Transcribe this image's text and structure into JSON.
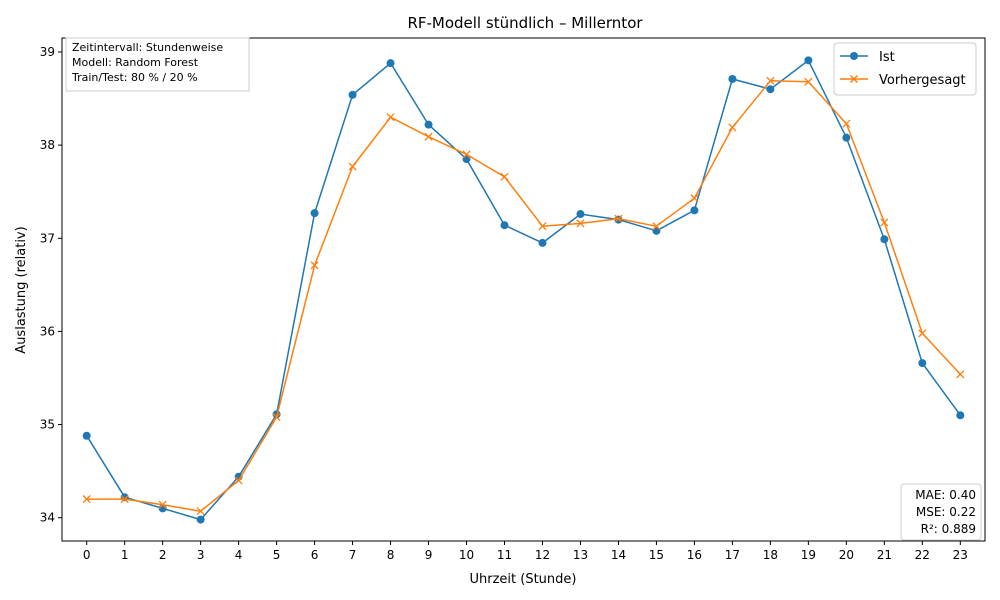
{
  "chart_data": {
    "type": "line",
    "title": "RF-Modell stündlich – Millerntor",
    "xlabel": "Uhrzeit (Stunde)",
    "ylabel": "Auslastung (relativ)",
    "x": [
      0,
      1,
      2,
      3,
      4,
      5,
      6,
      7,
      8,
      9,
      10,
      11,
      12,
      13,
      14,
      15,
      16,
      17,
      18,
      19,
      20,
      21,
      22,
      23
    ],
    "xlim": [
      -0.65,
      23.65
    ],
    "ylim": [
      33.75,
      39.15
    ],
    "yticks": [
      34,
      35,
      36,
      37,
      38,
      39
    ],
    "grid": false,
    "legend_position": "top-right",
    "series": [
      {
        "name": "Ist",
        "color": "#1f77b4",
        "marker": "circle",
        "values": [
          34.88,
          34.22,
          34.1,
          33.98,
          34.44,
          35.11,
          37.27,
          38.54,
          38.88,
          38.22,
          37.85,
          37.14,
          36.95,
          37.26,
          37.2,
          37.08,
          37.3,
          38.71,
          38.6,
          38.91,
          38.08,
          36.99,
          35.66,
          35.1
        ]
      },
      {
        "name": "Vorhergesagt",
        "color": "#ff7f0e",
        "marker": "x",
        "values": [
          34.2,
          34.2,
          34.14,
          34.07,
          34.4,
          35.08,
          36.71,
          37.77,
          38.3,
          38.09,
          37.9,
          37.66,
          37.13,
          37.16,
          37.21,
          37.13,
          37.43,
          38.19,
          38.69,
          38.68,
          38.23,
          37.17,
          35.98,
          35.54
        ]
      }
    ],
    "annotations": {
      "info_lines": [
        "Zeitintervall: Stundenweise",
        "Modell: Random Forest",
        "Train/Test: 80 % / 20 %"
      ],
      "metrics_lines": [
        "MAE: 0.40",
        "MSE: 0.22",
        "R²: 0.889"
      ]
    }
  }
}
